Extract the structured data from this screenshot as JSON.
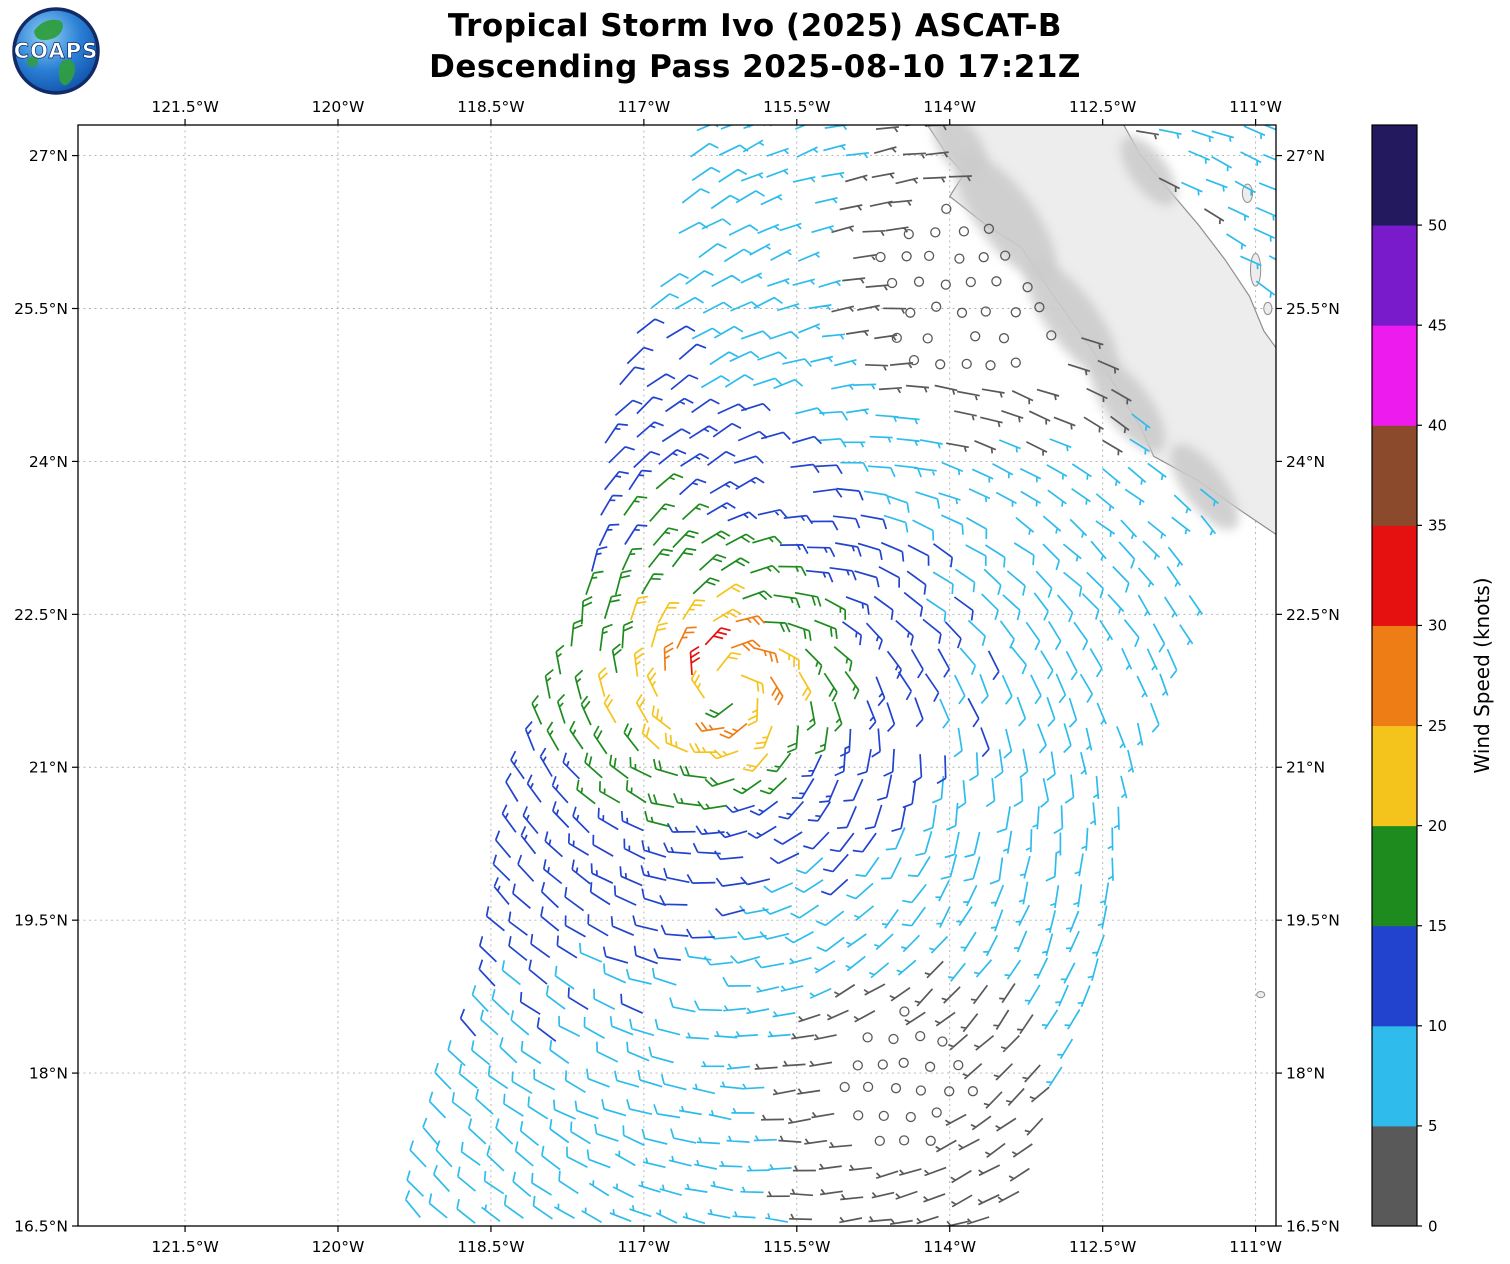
{
  "header": {
    "logo_text": "COAPS",
    "title_line1": "Tropical Storm Ivo (2025) ASCAT-B",
    "title_line2": "Descending Pass 2025-08-10 17:21Z"
  },
  "chart_data": {
    "type": "wind_barb_map",
    "title": "Tropical Storm Ivo (2025) ASCAT-B",
    "subtitle": "Descending Pass 2025-08-10 17:21Z",
    "satellite": "ASCAT-B",
    "pass_type": "Descending",
    "datetime_utc": "2025-08-10 17:21Z",
    "storm_name": "Tropical Storm Ivo",
    "plot_bg": "#ffffff",
    "x_axis": {
      "unit": "degW",
      "range": [
        -122.55,
        -110.8
      ],
      "ticks": [
        -121.5,
        -120,
        -118.5,
        -117,
        -115.5,
        -114,
        -112.5,
        -111
      ],
      "tick_labels": [
        "121.5°W",
        "120°W",
        "118.5°W",
        "117°W",
        "115.5°W",
        "114°W",
        "112.5°W",
        "111°W"
      ]
    },
    "y_axis": {
      "unit": "degN",
      "range": [
        16.5,
        27.3
      ],
      "ticks": [
        27,
        25.5,
        24,
        22.5,
        21,
        19.5,
        18,
        16.5
      ],
      "tick_labels": [
        "27°N",
        "25.5°N",
        "24°N",
        "22.5°N",
        "21°N",
        "19.5°N",
        "18°N",
        "16.5°N"
      ]
    },
    "colorbar": {
      "label": "Wind Speed (knots)",
      "tick_labels": [
        "0",
        "5",
        "10",
        "15",
        "20",
        "25",
        "30",
        "35",
        "40",
        "45",
        "50"
      ],
      "bin_size_knots": 5,
      "colors_low_to_high": [
        "#595959",
        "#2FBCEC",
        "#2143CD",
        "#1E8B1F",
        "#F5C41C",
        "#EF7D15",
        "#E51010",
        "#8B4A2B",
        "#EE1BEE",
        "#7A1BCB",
        "#23195F"
      ]
    },
    "wind_field": {
      "description": "Cyclonic ASCAT-B scatterometer wind barbs around Tropical Storm Ivo; barbs colored by speed, open gray circles mark near-calm cells",
      "storm_center": {
        "lon": -116.18,
        "lat": 21.78
      },
      "max_observed_knots": 29,
      "radius_max_wind_deg": 0.45,
      "outer_decay_exponent": 0.55,
      "inner_profile_exponent": 0.4,
      "inflow_angle_deg": 18,
      "ambient_flow": {
        "knots": 4.6,
        "toward_azimuth_deg": 192,
        "fade": {
          "base": 0.15,
          "per_deg_west_of_111": 0.06,
          "per_deg_south_of_24": 0.05
        }
      },
      "calm_zones": [
        {
          "lon": -113.7,
          "lat": 25.75,
          "radius_deg": 1.9,
          "strength": 0.92
        },
        {
          "lon": -114.5,
          "lat": 17.95,
          "radius_deg": 1.15,
          "strength": 0.85
        }
      ],
      "swath": {
        "left_edge_lon_at_16_5N": -119.15,
        "left_edge_dlon_dlat": 0.245,
        "width_deg": 5.75,
        "wiggle_amp_deg": 0.1,
        "wiggle_freq_per_deg": 1.7
      },
      "grid_spacing_deg": 0.255,
      "barb_conventions": {
        "full_barb_knots": 10,
        "half_barb_knots": 5,
        "calm_circle_below_knots": 2.6
      }
    },
    "geography": {
      "region": "Baja California peninsula (Mexico) and adjacent eastern Pacific",
      "coast_stroke": "#8f8f8f",
      "land_fill": "#ededed",
      "terrain_shade": "#cccccc",
      "baja_polygon": [
        [
          -114.25,
          27.35
        ],
        [
          -114.02,
          27.0
        ],
        [
          -113.86,
          26.82
        ],
        [
          -114.0,
          26.6
        ],
        [
          -113.62,
          26.3
        ],
        [
          -113.3,
          26.1
        ],
        [
          -112.98,
          25.62
        ],
        [
          -112.62,
          25.12
        ],
        [
          -112.32,
          24.65
        ],
        [
          -112.12,
          24.32
        ],
        [
          -112.0,
          24.05
        ],
        [
          -111.58,
          23.82
        ],
        [
          -111.12,
          23.5
        ],
        [
          -110.6,
          23.15
        ],
        [
          -110.3,
          23.0
        ],
        [
          -110.3,
          24.4
        ],
        [
          -110.55,
          24.45
        ],
        [
          -110.68,
          24.95
        ],
        [
          -110.92,
          25.28
        ],
        [
          -111.06,
          25.62
        ],
        [
          -111.3,
          25.98
        ],
        [
          -111.56,
          26.32
        ],
        [
          -111.9,
          26.72
        ],
        [
          -112.14,
          27.02
        ],
        [
          -112.32,
          27.35
        ]
      ],
      "islands": [
        [
          -111.08,
          26.63,
          0.05,
          0.09
        ],
        [
          -111.0,
          25.88,
          0.05,
          0.16
        ],
        [
          -110.88,
          25.5,
          0.04,
          0.06
        ],
        [
          -110.95,
          18.77,
          0.04,
          0.03
        ]
      ],
      "terrain_patches": [
        [
          -113.45,
          26.4,
          0.28,
          0.75
        ],
        [
          -112.8,
          25.4,
          0.25,
          0.7
        ],
        [
          -112.25,
          24.55,
          0.22,
          0.55
        ],
        [
          -111.5,
          23.75,
          0.2,
          0.5
        ],
        [
          -112.05,
          26.85,
          0.18,
          0.4
        ],
        [
          -113.9,
          27.1,
          0.2,
          0.35
        ]
      ]
    }
  }
}
